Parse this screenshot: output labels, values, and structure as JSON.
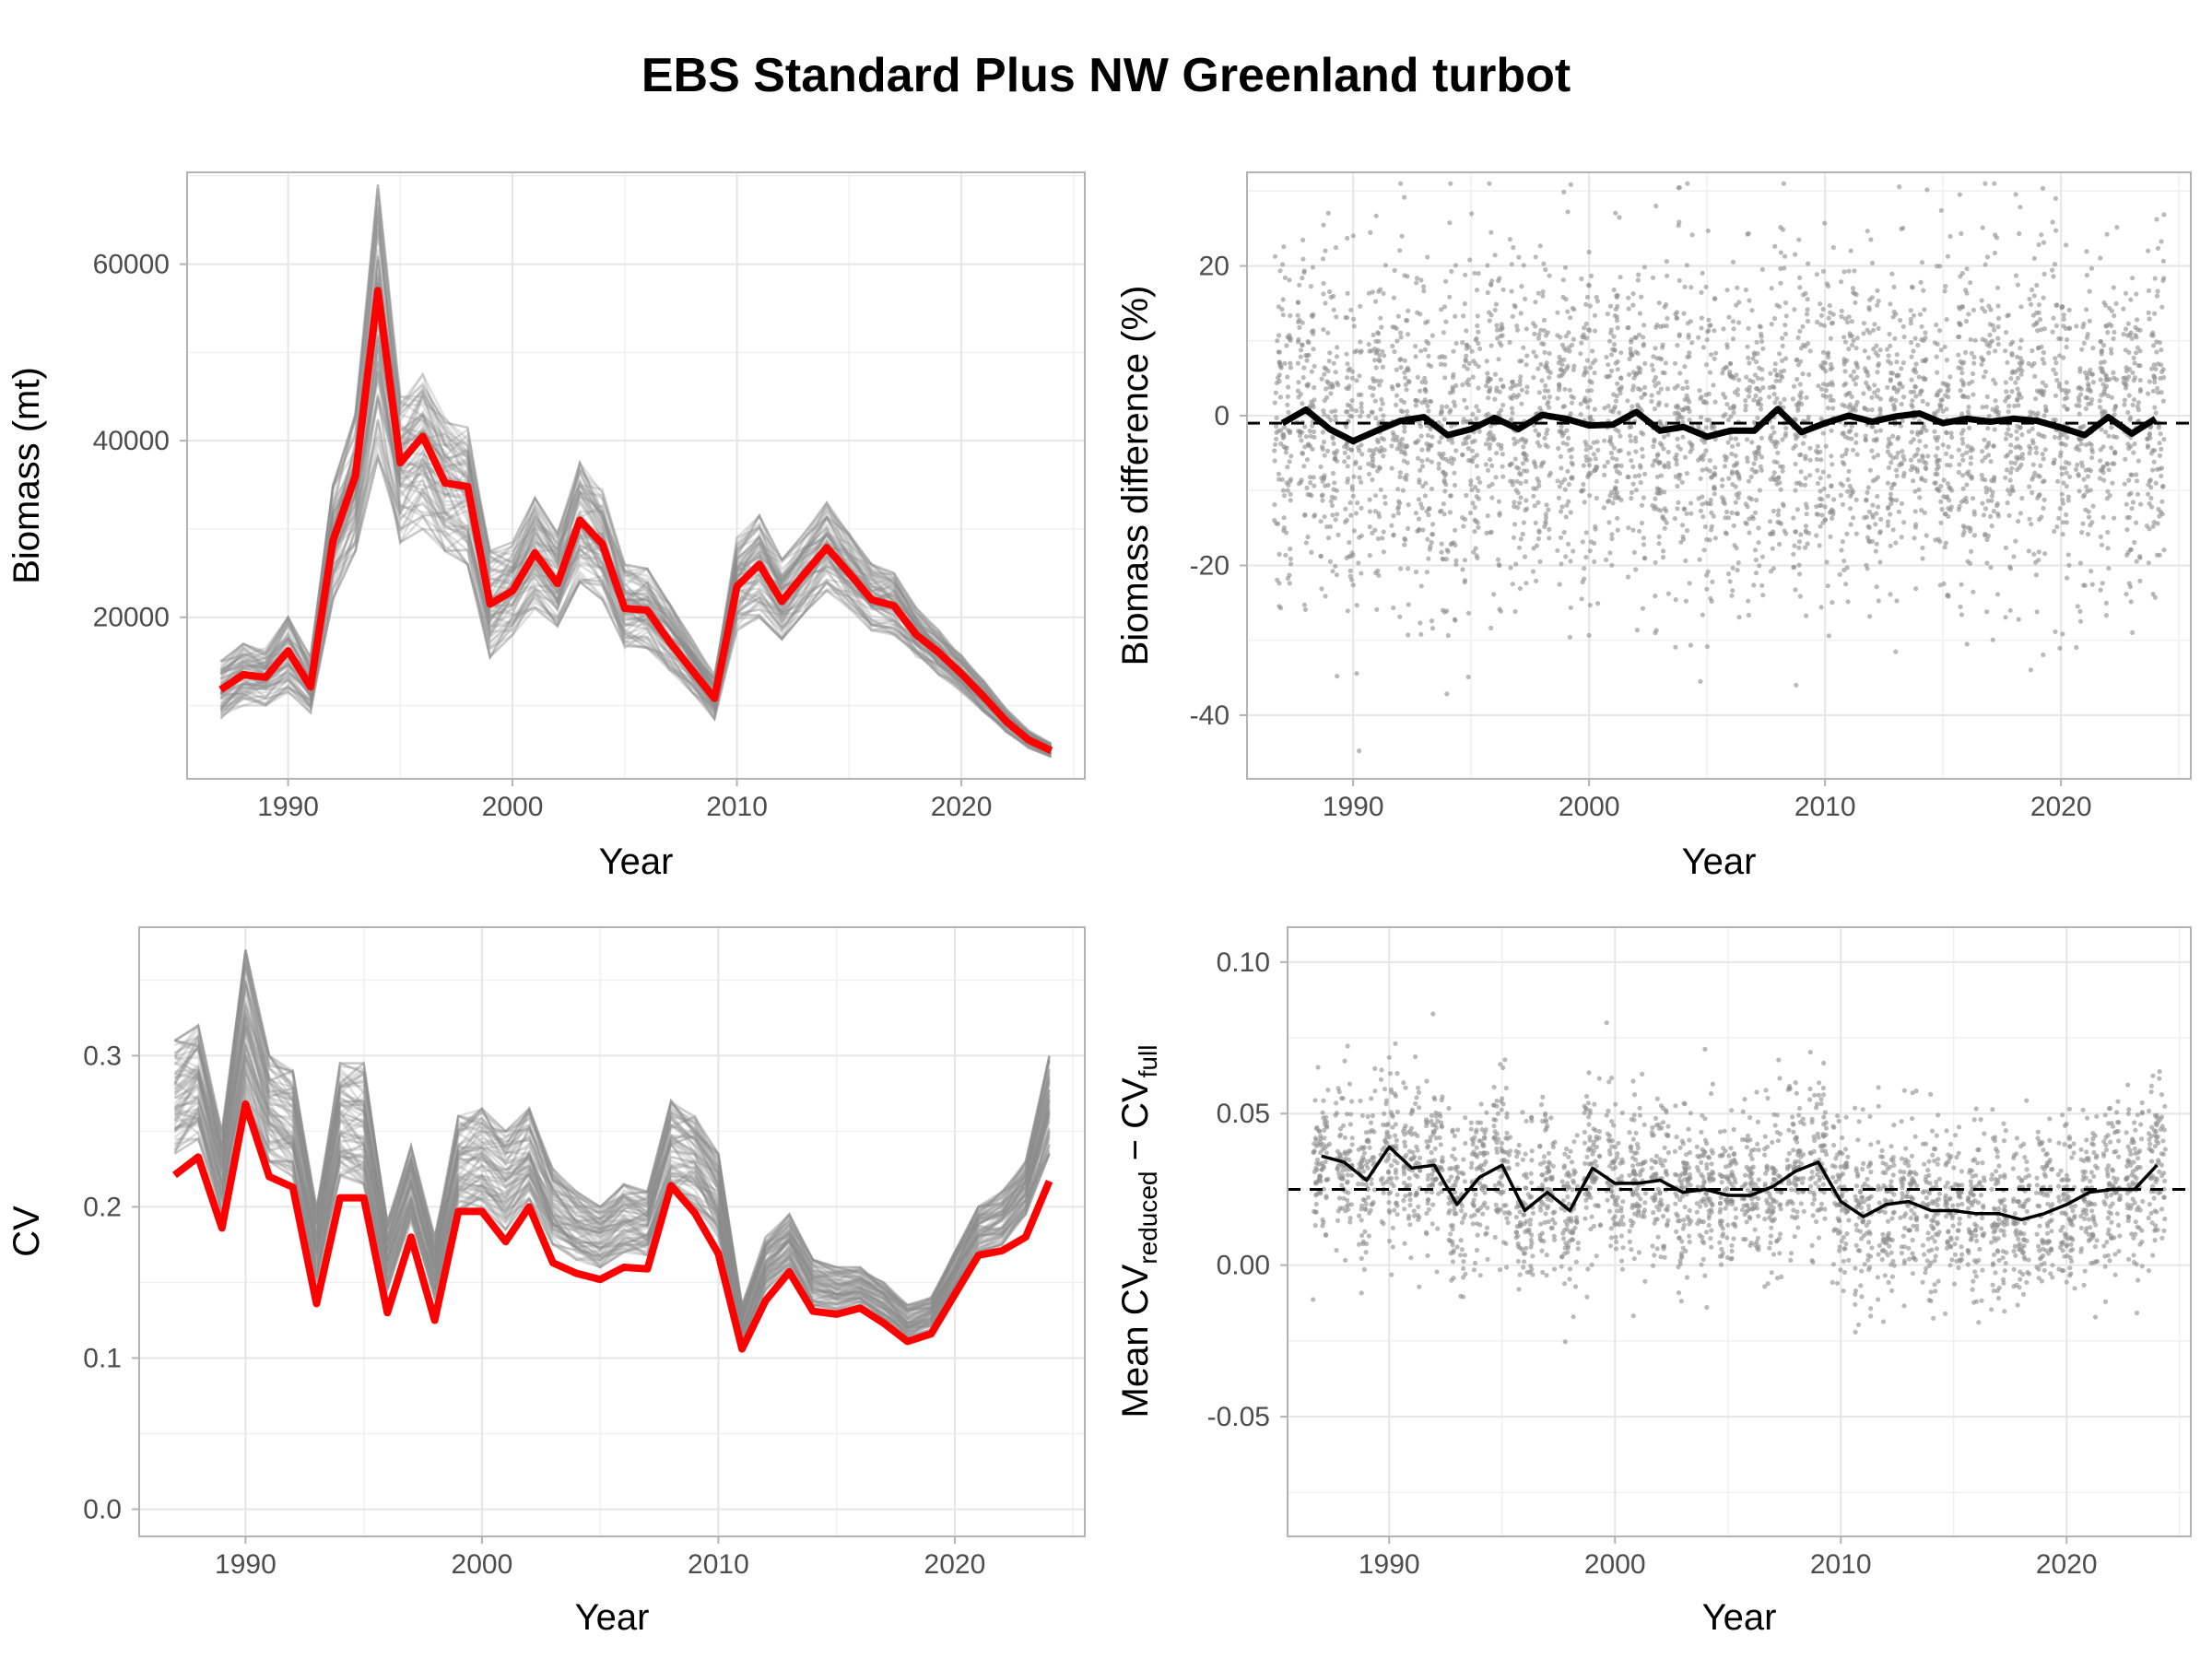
{
  "title": "EBS Standard Plus NW Greenland turbot",
  "colors": {
    "highlight": "#ff0000",
    "replicate": "#8c8c8c",
    "points": "#8c8c8c",
    "mean_line": "#000000",
    "grid": "#e6e6e6",
    "panel_border": "#b3b3b3"
  },
  "chart_data": [
    {
      "id": "biomass",
      "type": "line",
      "xlabel": "Year",
      "ylabel": "Biomass (mt)",
      "xlim": [
        1985.5,
        2025.5
      ],
      "ylim": [
        1700,
        70400
      ],
      "xticks": [
        1990,
        2000,
        2010,
        2020
      ],
      "yticks": [
        20000,
        40000,
        60000
      ],
      "ytick_labels": [
        "20000",
        "40000",
        "60000"
      ],
      "grid": true,
      "x": [
        1987,
        1988,
        1989,
        1990,
        1991,
        1992,
        1993,
        1994,
        1995,
        1996,
        1997,
        1998,
        1999,
        2000,
        2001,
        2002,
        2003,
        2004,
        2005,
        2006,
        2007,
        2008,
        2009,
        2010,
        2011,
        2012,
        2013,
        2014,
        2015,
        2016,
        2017,
        2018,
        2019,
        2020,
        2021,
        2022,
        2023,
        2024
      ],
      "series": [
        {
          "role": "full survey",
          "color": "#ff0000",
          "values": [
            11800,
            13500,
            13200,
            16200,
            12100,
            28700,
            36000,
            57000,
            37500,
            40500,
            35200,
            34800,
            21500,
            23000,
            27300,
            23800,
            31000,
            28300,
            21000,
            20800,
            17200,
            14000,
            10800,
            23500,
            26000,
            21800,
            24900,
            27900,
            25000,
            22000,
            21300,
            18000,
            16000,
            13600,
            11000,
            8200,
            6100,
            4900
          ]
        }
      ],
      "replicate_band": {
        "description": "100 reduced-survey replicates",
        "low": [
          8500,
          10000,
          10000,
          11500,
          9200,
          22000,
          27500,
          38000,
          28500,
          30000,
          27500,
          26000,
          15500,
          18000,
          21000,
          19000,
          24000,
          22000,
          16500,
          16500,
          14000,
          11500,
          8500,
          18500,
          20000,
          17500,
          20500,
          23000,
          21000,
          18500,
          18000,
          15500,
          13500,
          11500,
          9300,
          7000,
          5200,
          4200
        ],
        "high": [
          15000,
          17000,
          16500,
          20000,
          15500,
          35000,
          43000,
          69000,
          45000,
          47500,
          42500,
          41500,
          27500,
          28500,
          33500,
          29500,
          37500,
          34500,
          26000,
          25500,
          21500,
          17500,
          13500,
          29000,
          31500,
          26500,
          29500,
          33000,
          29500,
          26000,
          25000,
          21000,
          18500,
          15700,
          12800,
          9600,
          7200,
          5700
        ]
      }
    },
    {
      "id": "biomass-diff",
      "type": "scatter",
      "xlabel": "Year",
      "ylabel": "Biomass difference (%)",
      "xlim": [
        1985.5,
        2025.5
      ],
      "ylim": [
        -48.5,
        32.5
      ],
      "xticks": [
        1990,
        2000,
        2010,
        2020
      ],
      "yticks": [
        -40,
        -20,
        0,
        20
      ],
      "ytick_labels": [
        "-40",
        "-20",
        "0",
        "20"
      ],
      "grid": true,
      "reference_line": -1,
      "point_spread": {
        "sd": 11,
        "min": -45,
        "max": 31,
        "per_year": 100
      },
      "x": [
        1987,
        1988,
        1989,
        1990,
        1991,
        1992,
        1993,
        1994,
        1995,
        1996,
        1997,
        1998,
        1999,
        2000,
        2001,
        2002,
        2003,
        2004,
        2005,
        2006,
        2007,
        2008,
        2009,
        2010,
        2011,
        2012,
        2013,
        2014,
        2015,
        2016,
        2017,
        2018,
        2019,
        2020,
        2021,
        2022,
        2023,
        2024
      ],
      "series": [
        {
          "role": "mean difference",
          "color": "#000000",
          "values": [
            -1,
            0.8,
            -1.8,
            -3.4,
            -2,
            -0.7,
            -0.2,
            -2.6,
            -1.8,
            -0.3,
            -1.8,
            0.1,
            -0.4,
            -1.3,
            -1.2,
            0.5,
            -2,
            -1.5,
            -2.8,
            -2,
            -2,
            0.9,
            -2.2,
            -1,
            0,
            -0.8,
            -0.1,
            0.3,
            -1,
            -0.4,
            -0.8,
            -0.4,
            -0.7,
            -1.6,
            -2.6,
            -0.2,
            -2.4,
            -0.4
          ]
        }
      ]
    },
    {
      "id": "cv",
      "type": "line",
      "xlabel": "Year",
      "ylabel": "CV",
      "xlim": [
        1985.5,
        2025.5
      ],
      "ylim": [
        -0.018,
        0.385
      ],
      "xticks": [
        1990,
        2000,
        2010,
        2020
      ],
      "yticks": [
        0.0,
        0.1,
        0.2,
        0.3
      ],
      "ytick_labels": [
        "0.0",
        "0.1",
        "0.2",
        "0.3"
      ],
      "grid": true,
      "x": [
        1987,
        1988,
        1989,
        1990,
        1991,
        1992,
        1993,
        1994,
        1995,
        1996,
        1997,
        1998,
        1999,
        2000,
        2001,
        2002,
        2003,
        2004,
        2005,
        2006,
        2007,
        2008,
        2009,
        2010,
        2011,
        2012,
        2013,
        2014,
        2015,
        2016,
        2017,
        2018,
        2019,
        2020,
        2021,
        2022,
        2023,
        2024
      ],
      "series": [
        {
          "role": "full survey",
          "color": "#ff0000",
          "values": [
            0.221,
            0.233,
            0.186,
            0.268,
            0.22,
            0.213,
            0.136,
            0.206,
            0.206,
            0.13,
            0.18,
            0.125,
            0.197,
            0.197,
            0.177,
            0.2,
            0.163,
            0.156,
            0.152,
            0.16,
            0.159,
            0.214,
            0.196,
            0.169,
            0.106,
            0.138,
            0.157,
            0.131,
            0.129,
            0.133,
            0.123,
            0.111,
            0.116,
            0.142,
            0.168,
            0.171,
            0.18,
            0.217
          ]
        }
      ],
      "replicate_band": {
        "description": "100 reduced-survey replicates",
        "low": [
          0.235,
          0.245,
          0.196,
          0.265,
          0.23,
          0.22,
          0.15,
          0.22,
          0.215,
          0.145,
          0.19,
          0.14,
          0.195,
          0.2,
          0.185,
          0.205,
          0.175,
          0.165,
          0.16,
          0.17,
          0.168,
          0.205,
          0.2,
          0.18,
          0.11,
          0.145,
          0.16,
          0.135,
          0.132,
          0.135,
          0.126,
          0.112,
          0.118,
          0.145,
          0.17,
          0.175,
          0.195,
          0.235
        ],
        "high": [
          0.31,
          0.32,
          0.25,
          0.37,
          0.3,
          0.29,
          0.2,
          0.295,
          0.295,
          0.19,
          0.24,
          0.18,
          0.26,
          0.265,
          0.25,
          0.265,
          0.225,
          0.21,
          0.2,
          0.215,
          0.21,
          0.27,
          0.26,
          0.235,
          0.135,
          0.18,
          0.195,
          0.165,
          0.16,
          0.16,
          0.15,
          0.135,
          0.14,
          0.17,
          0.2,
          0.21,
          0.23,
          0.3
        ]
      }
    },
    {
      "id": "cv-diff",
      "type": "scatter",
      "xlabel": "Year",
      "ylabel": {
        "prefix": "Mean CV",
        "sub1": "reduced",
        "mid": " − CV",
        "sub2": "full"
      },
      "xlim": [
        1985.5,
        2025.5
      ],
      "ylim": [
        -0.0895,
        0.1115
      ],
      "xticks": [
        1990,
        2000,
        2010,
        2020
      ],
      "yticks": [
        -0.05,
        0.0,
        0.05,
        0.1
      ],
      "ytick_labels": [
        "-0.05",
        "0.00",
        "0.05",
        "0.10"
      ],
      "grid": true,
      "reference_line": 0.025,
      "point_spread": {
        "sd": 0.014,
        "min": -0.085,
        "max": 0.103,
        "per_year": 80
      },
      "x": [
        1987,
        1988,
        1989,
        1990,
        1991,
        1992,
        1993,
        1994,
        1995,
        1996,
        1997,
        1998,
        1999,
        2000,
        2001,
        2002,
        2003,
        2004,
        2005,
        2006,
        2007,
        2008,
        2009,
        2010,
        2011,
        2012,
        2013,
        2014,
        2015,
        2016,
        2017,
        2018,
        2019,
        2020,
        2021,
        2022,
        2023,
        2024
      ],
      "series": [
        {
          "role": "mean difference",
          "color": "#000000",
          "values": [
            0.036,
            0.034,
            0.028,
            0.039,
            0.032,
            0.033,
            0.02,
            0.029,
            0.033,
            0.018,
            0.024,
            0.018,
            0.032,
            0.027,
            0.027,
            0.028,
            0.024,
            0.025,
            0.023,
            0.023,
            0.026,
            0.031,
            0.034,
            0.021,
            0.016,
            0.02,
            0.021,
            0.018,
            0.018,
            0.017,
            0.017,
            0.015,
            0.017,
            0.02,
            0.024,
            0.025,
            0.025,
            0.033
          ]
        }
      ]
    }
  ]
}
